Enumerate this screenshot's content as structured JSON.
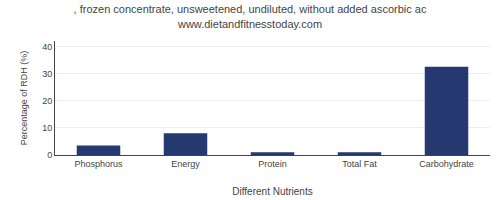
{
  "chart_data": {
    "type": "bar",
    "title": ", frozen concentrate, unsweetened, undiluted, without added ascorbic ac",
    "subtitle": "www.dietandfitnesstoday.com",
    "categories": [
      "Phosphorus",
      "Energy",
      "Protein",
      "Total Fat",
      "Carbohydrate"
    ],
    "values": [
      3.5,
      8.0,
      1.0,
      1.0,
      32.5
    ],
    "color": "#253870",
    "xlabel": "Different Nutrients",
    "ylabel": "Percentage of RDH (%)",
    "ylim": [
      0,
      42
    ],
    "yticks": [
      0,
      10,
      20,
      30,
      40
    ],
    "grid": true
  }
}
